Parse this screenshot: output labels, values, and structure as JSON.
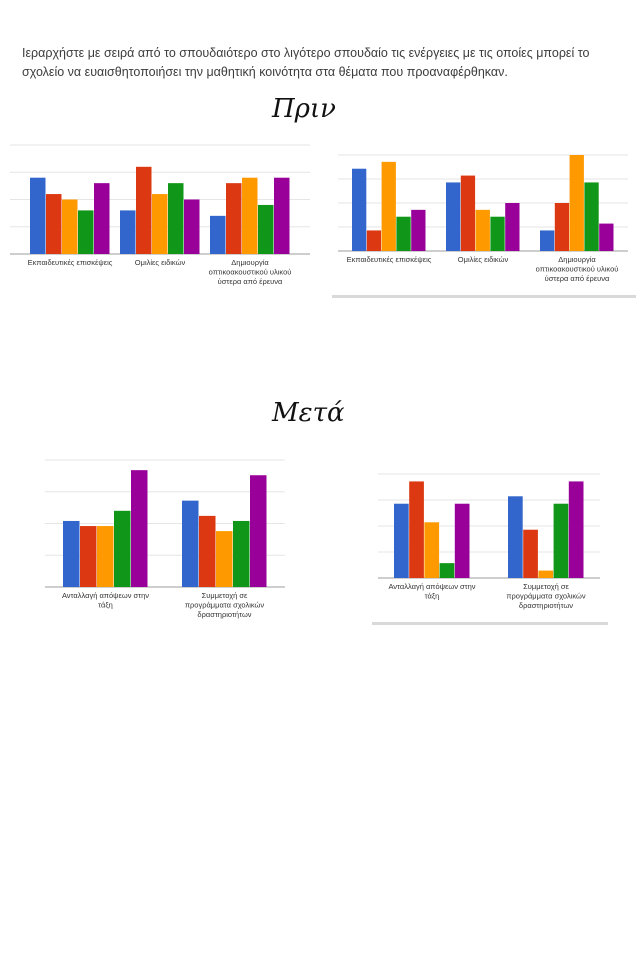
{
  "question": "Ιεραρχήστε με σειρά από το σπουδαιότερο στο λιγότερο σπουδαίο τις ενέργειες με τις οποίες μπορεί το σχολείο να ευαισθητοποιήσει την μαθητική κοινότητα στα θέματα που προαναφέρθηκαν.",
  "headings": {
    "before": "Πριν",
    "after": "Μετά"
  },
  "colors": [
    "#3366cc",
    "#dc3912",
    "#ff9900",
    "#109618",
    "#990099"
  ],
  "chart_data": [
    {
      "type": "bar",
      "group": "Πριν",
      "categories": [
        [
          "Εκπαιδευτικές επισκέψεις"
        ],
        [
          "Ομιλίες ειδικών"
        ],
        [
          "Δημιουργία",
          "οπτικοακουστικού υλικού",
          "ύστερα από έρευνα"
        ]
      ],
      "series": [
        {
          "color": "#3366cc",
          "values": [
            14,
            8,
            7
          ]
        },
        {
          "color": "#dc3912",
          "values": [
            11,
            16,
            13
          ]
        },
        {
          "color": "#ff9900",
          "values": [
            10,
            11,
            14
          ]
        },
        {
          "color": "#109618",
          "values": [
            8,
            13,
            9
          ]
        },
        {
          "color": "#990099",
          "values": [
            13,
            10,
            14
          ]
        }
      ],
      "ylim": [
        0,
        20
      ]
    },
    {
      "type": "bar",
      "group": "Πριν",
      "categories": [
        [
          "Εκπαιδευτικές επισκέψεις"
        ],
        [
          "Ομιλίες ειδικών"
        ],
        [
          "Δημιουργία",
          "οπτικοακουστικού υλικού",
          "ύστερα από έρευνα"
        ]
      ],
      "series": [
        {
          "color": "#3366cc",
          "values": [
            12,
            10,
            3
          ]
        },
        {
          "color": "#dc3912",
          "values": [
            3,
            11,
            7
          ]
        },
        {
          "color": "#ff9900",
          "values": [
            13,
            6,
            14
          ]
        },
        {
          "color": "#109618",
          "values": [
            5,
            5,
            10
          ]
        },
        {
          "color": "#990099",
          "values": [
            6,
            7,
            4
          ]
        }
      ],
      "ylim": [
        0,
        14
      ]
    },
    {
      "type": "bar",
      "group": "Μετά",
      "categories": [
        [
          "Ανταλλαγή απόψεων στην",
          "τάξη"
        ],
        [
          "Συμμετοχή σε",
          "προγράμματα σχολικών",
          "δραστηριοτήτων"
        ]
      ],
      "series": [
        {
          "color": "#3366cc",
          "values": [
            13,
            17
          ]
        },
        {
          "color": "#dc3912",
          "values": [
            12,
            14
          ]
        },
        {
          "color": "#ff9900",
          "values": [
            12,
            11
          ]
        },
        {
          "color": "#109618",
          "values": [
            15,
            13
          ]
        },
        {
          "color": "#990099",
          "values": [
            23,
            22
          ]
        }
      ],
      "ylim": [
        0,
        25
      ]
    },
    {
      "type": "bar",
      "group": "Μετά",
      "categories": [
        [
          "Ανταλλαγή απόψεων στην",
          "τάξη"
        ],
        [
          "Συμμετοχή σε",
          "προγράμματα σχολικών",
          "δραστηριοτήτων"
        ]
      ],
      "series": [
        {
          "color": "#3366cc",
          "values": [
            10,
            11
          ]
        },
        {
          "color": "#dc3912",
          "values": [
            13,
            6.5
          ]
        },
        {
          "color": "#ff9900",
          "values": [
            7.5,
            1
          ]
        },
        {
          "color": "#109618",
          "values": [
            2,
            10
          ]
        },
        {
          "color": "#990099",
          "values": [
            10,
            13
          ]
        }
      ],
      "ylim": [
        0,
        14
      ]
    }
  ]
}
